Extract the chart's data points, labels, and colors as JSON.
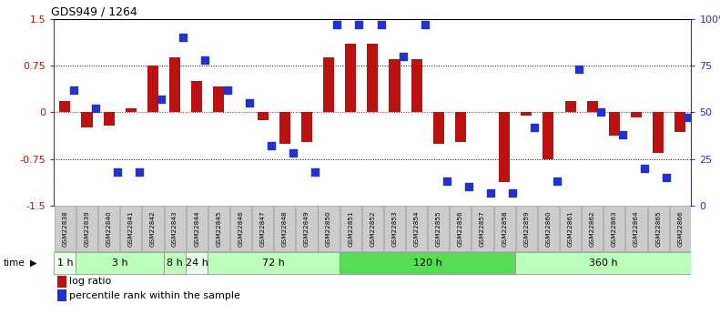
{
  "title": "GDS949 / 1264",
  "samples": [
    "GSM22838",
    "GSM22839",
    "GSM22840",
    "GSM22841",
    "GSM22842",
    "GSM22843",
    "GSM22844",
    "GSM22845",
    "GSM22846",
    "GSM22847",
    "GSM22848",
    "GSM22849",
    "GSM22850",
    "GSM22851",
    "GSM22852",
    "GSM22853",
    "GSM22854",
    "GSM22855",
    "GSM22856",
    "GSM22857",
    "GSM22858",
    "GSM22859",
    "GSM22860",
    "GSM22861",
    "GSM22862",
    "GSM22863",
    "GSM22864",
    "GSM22865",
    "GSM22866"
  ],
  "log_ratio": [
    0.18,
    -0.25,
    -0.22,
    0.07,
    0.75,
    0.88,
    0.5,
    0.42,
    0.0,
    -0.12,
    -0.5,
    -0.48,
    0.88,
    1.1,
    1.1,
    0.85,
    0.85,
    -0.5,
    -0.48,
    0.0,
    -1.12,
    -0.05,
    -0.75,
    0.18,
    0.18,
    -0.38,
    -0.08,
    -0.65,
    -0.32
  ],
  "percentile": [
    62,
    52,
    18,
    18,
    57,
    90,
    78,
    62,
    55,
    32,
    28,
    18,
    97,
    97,
    97,
    80,
    97,
    13,
    10,
    7,
    7,
    42,
    13,
    73,
    50,
    38,
    20,
    15,
    47
  ],
  "time_groups": [
    {
      "label": "1 h",
      "start": 0,
      "end": 1,
      "color": "#e8ffe8"
    },
    {
      "label": "3 h",
      "start": 1,
      "end": 5,
      "color": "#bbffbb"
    },
    {
      "label": "8 h",
      "start": 5,
      "end": 6,
      "color": "#bbffbb"
    },
    {
      "label": "24 h",
      "start": 6,
      "end": 7,
      "color": "#e8ffe8"
    },
    {
      "label": "72 h",
      "start": 7,
      "end": 13,
      "color": "#bbffbb"
    },
    {
      "label": "120 h",
      "start": 13,
      "end": 21,
      "color": "#55dd55"
    },
    {
      "label": "360 h",
      "start": 21,
      "end": 29,
      "color": "#bbffbb"
    }
  ],
  "bar_color": "#bb1111",
  "dot_color": "#2233cc",
  "ylim": [
    -1.5,
    1.5
  ],
  "yticks_left": [
    -1.5,
    -0.75,
    0.0,
    0.75,
    1.5
  ],
  "yticks_right": [
    0,
    25,
    50,
    75,
    100
  ],
  "hlines_dotted": [
    -0.75,
    0.75
  ],
  "hline_zero_red": 0.0,
  "bg_color": "#ffffff"
}
